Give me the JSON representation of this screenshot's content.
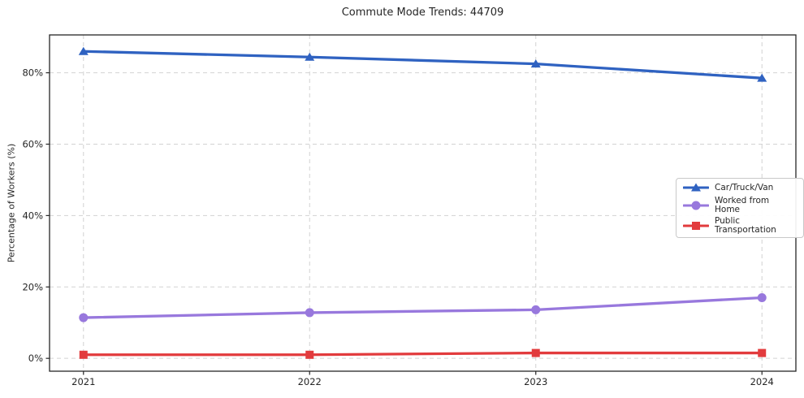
{
  "page": {
    "background": "#ffffff"
  },
  "chart_data": {
    "type": "line",
    "title": "Commute Mode Trends: 44709",
    "xlabel": "",
    "ylabel": "Percentage of Workers (%)",
    "x": [
      2021,
      2022,
      2023,
      2024
    ],
    "x_tick_labels": [
      "2021",
      "2022",
      "2023",
      "2024"
    ],
    "series": [
      {
        "name": "Car/Truck/Van",
        "marker": "triangle",
        "color": "#2f62c1",
        "values": [
          86.0,
          84.4,
          82.5,
          78.5
        ]
      },
      {
        "name": "Worked from Home",
        "marker": "circle",
        "color": "#9878dd",
        "values": [
          11.4,
          12.8,
          13.6,
          17.0
        ]
      },
      {
        "name": "Public Transportation",
        "marker": "square",
        "color": "#e23b3d",
        "values": [
          1.0,
          1.0,
          1.5,
          1.5
        ]
      }
    ],
    "yticks": [
      0,
      20,
      40,
      60,
      80
    ],
    "ytick_labels": [
      "0%",
      "20%",
      "40%",
      "60%",
      "80%"
    ],
    "ylim": [
      -3.6,
      90.6
    ],
    "xlim": [
      2020.85,
      2024.15
    ],
    "grid": true,
    "grid_color": "#d2d2d2",
    "axis_color": "#262626",
    "text_color": "#262626",
    "legend_position": "center right"
  }
}
